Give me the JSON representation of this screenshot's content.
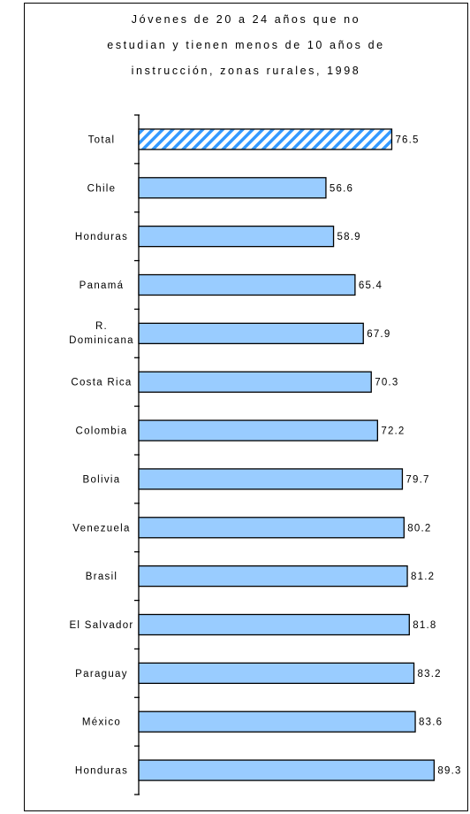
{
  "chart_data": {
    "type": "bar",
    "orientation": "horizontal",
    "title_lines": [
      "Jóvenes de 20 a 24 años que no",
      "estudian y tienen menos de 10 años de",
      "instrucción, zonas rurales, 1998"
    ],
    "categories": [
      [
        "Total"
      ],
      [
        "Chile"
      ],
      [
        "Honduras"
      ],
      [
        "Panamá"
      ],
      [
        "R.",
        "Dominicana"
      ],
      [
        "Costa Rica"
      ],
      [
        "Colombia"
      ],
      [
        "Bolivia"
      ],
      [
        "Venezuela"
      ],
      [
        "Brasil"
      ],
      [
        "El Salvador"
      ],
      [
        "Paraguay"
      ],
      [
        "México"
      ],
      [
        "Honduras"
      ]
    ],
    "values": [
      76.5,
      56.6,
      58.9,
      65.4,
      67.9,
      70.3,
      72.2,
      79.7,
      80.2,
      81.2,
      81.8,
      83.2,
      83.6,
      89.3
    ],
    "value_labels": [
      "76.5",
      "56.6",
      "58.9",
      "65.4",
      "67.9",
      "70.3",
      "72.2",
      "79.7",
      "80.2",
      "81.2",
      "81.8",
      "83.2",
      "83.6",
      "89.3"
    ],
    "highlight": [
      true,
      false,
      false,
      false,
      false,
      false,
      false,
      false,
      false,
      false,
      false,
      false,
      false,
      false
    ],
    "xlim": [
      0,
      90
    ],
    "grid": false,
    "colors": {
      "bar": "#99ccff",
      "highlight": "#3399ff",
      "outline": "#000000"
    }
  }
}
